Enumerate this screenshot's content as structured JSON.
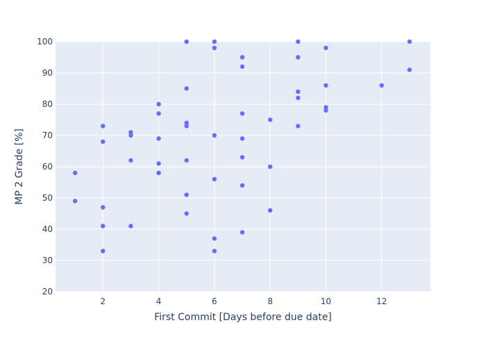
{
  "chart_data": {
    "type": "scatter",
    "title": "",
    "xlabel": "First Commit [Days before due date]",
    "ylabel": "MP 2 Grade [%]",
    "xlim": [
      0.3,
      13.75
    ],
    "ylim": [
      20,
      100
    ],
    "xticks": [
      2,
      4,
      6,
      8,
      10,
      12
    ],
    "yticks": [
      20,
      30,
      40,
      50,
      60,
      70,
      80,
      90,
      100
    ],
    "grid": true,
    "colors": {
      "plot_bg": "#e5ecf6",
      "grid": "#ffffff",
      "marker": "#636efa",
      "text": "#2a3f5f"
    },
    "series": [
      {
        "x": [
          1,
          1,
          2,
          2,
          2,
          2,
          2,
          3,
          3,
          3,
          3,
          4,
          4,
          4,
          4,
          4,
          4,
          5,
          5,
          5,
          5,
          5,
          5,
          5,
          6,
          6,
          6,
          6,
          6,
          6,
          7,
          7,
          7,
          7,
          7,
          7,
          7,
          8,
          8,
          8,
          9,
          9,
          9,
          9,
          9,
          10,
          10,
          10,
          10,
          12,
          13,
          13
        ],
        "y": [
          58,
          49,
          73,
          68,
          47,
          41,
          33,
          71,
          70,
          62,
          41,
          80,
          77,
          69,
          61,
          58,
          58,
          100,
          85,
          74,
          73,
          62,
          51,
          45,
          100,
          98,
          70,
          56,
          37,
          33,
          95,
          92,
          77,
          69,
          63,
          54,
          39,
          75,
          60,
          46,
          100,
          95,
          84,
          82,
          73,
          98,
          86,
          79,
          78,
          86,
          100,
          91
        ]
      }
    ]
  }
}
